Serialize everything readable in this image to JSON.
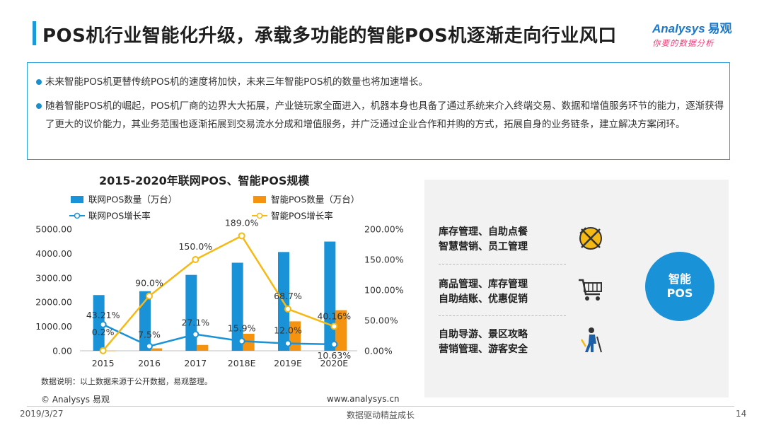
{
  "header": {
    "title": "POS机行业智能化升级，承载多功能的智能POS机逐渐走向行业风口",
    "logo_brand": "Analysys",
    "logo_brand_cn": "易观",
    "logo_slogan": "你要的数据分析"
  },
  "summary": {
    "bullets": [
      "未来智能POS机更替传统POS机的速度将加快，未来三年智能POS机的数量也将加速增长。",
      "随着智能POS机的崛起，POS机厂商的边界大大拓展，产业链玩家全面进入，机器本身也具备了通过系统来介入终端交易、数据和增值服务环节的能力，逐渐获得了更大的议价能力，其业务范围也逐渐拓展到交易流水分成和增值服务，并广泛通过企业合作和并购的方式，拓展自身的业务链条，建立解决方案闭环。"
    ]
  },
  "chart_data": {
    "type": "bar",
    "title": "2015-2020年联网POS、智能POS规模",
    "categories": [
      "2015",
      "2016",
      "2017",
      "2018E",
      "2019E",
      "2020E"
    ],
    "y_left": {
      "ticks": [
        "0.00",
        "1000.00",
        "2000.00",
        "3000.00",
        "4000.00",
        "5000.00"
      ],
      "range": [
        0,
        5000
      ]
    },
    "y_right": {
      "ticks": [
        "0.00%",
        "50.00%",
        "100.00%",
        "150.00%",
        "200.00%"
      ],
      "range": [
        0,
        200
      ]
    },
    "series": [
      {
        "name": "联网POS数量（万台）",
        "kind": "bar",
        "axis": "left",
        "color": "#1a92d8",
        "values": [
          2290,
          2450,
          3120,
          3620,
          4060,
          4490
        ]
      },
      {
        "name": "智能POS数量（万台）",
        "kind": "bar",
        "axis": "left",
        "color": "#f5930f",
        "values": [
          5,
          100,
          240,
          700,
          1210,
          1670
        ]
      },
      {
        "name": "联网POS增长率",
        "kind": "line",
        "axis": "right",
        "color": "#1a92d8",
        "values": [
          43.21,
          7.5,
          27.1,
          15.9,
          12.0,
          10.63
        ],
        "labels": [
          "43.21%",
          "7.5%",
          "27.1%",
          "15.9%",
          "12.0%",
          "10.63%"
        ]
      },
      {
        "name": "智能POS增长率",
        "kind": "line",
        "axis": "right",
        "color": "#f5b914",
        "values": [
          0.2,
          90.0,
          150.0,
          189.0,
          68.7,
          40.16
        ],
        "labels": [
          "0.2%",
          "90.0%",
          "150.0%",
          "189.0%",
          "68.7%",
          "40.16%"
        ]
      }
    ],
    "legend_position": "top",
    "grid": false
  },
  "notes": {
    "source": "数据说明：以上数据来源于公开数据，易观整理。"
  },
  "functions": {
    "groups": [
      {
        "line1": "库存管理、自助点餐",
        "line2": "智慧营销、员工管理",
        "icon": "dining-icon"
      },
      {
        "line1": "商品管理、库存管理",
        "line2": "自助结账、优惠促销",
        "icon": "shopping-cart-icon"
      },
      {
        "line1": "自助导游、景区攻略",
        "line2": "营销管理、游客安全",
        "icon": "tourist-icon"
      }
    ],
    "center_line1": "智能",
    "center_line2": "POS"
  },
  "footer": {
    "copyright": "© Analysys 易观",
    "url": "www.analysys.cn",
    "date": "2019/3/27",
    "slogan": "数据驱动精益成长",
    "page": "14"
  }
}
